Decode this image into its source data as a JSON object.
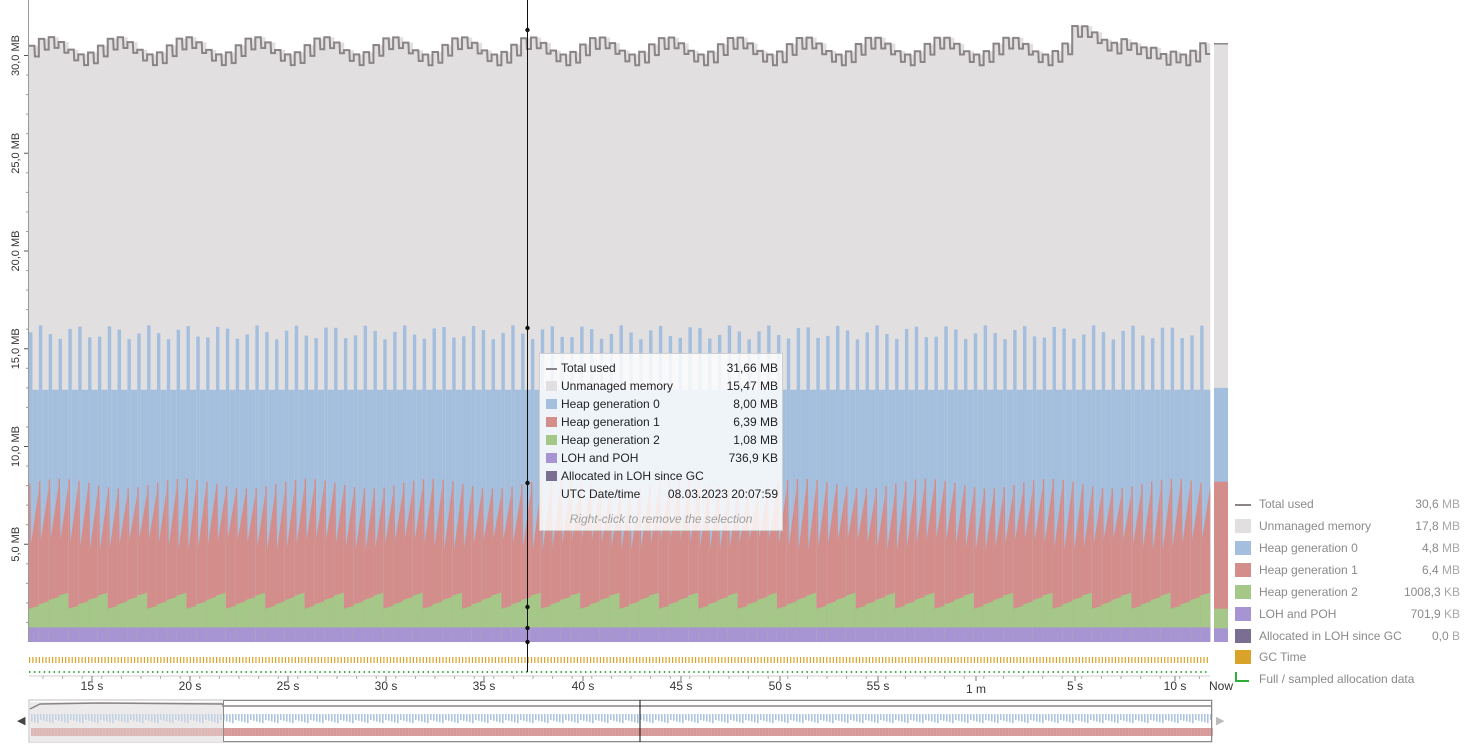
{
  "chart_data": {
    "type": "area",
    "title": "",
    "y_axis": {
      "ticks": [
        "5,0 MB",
        "10,0 MB",
        "15,0 MB",
        "20,0 MB",
        "25,0 MB",
        "30,0 MB"
      ],
      "ylim_mb": [
        0,
        33.5
      ]
    },
    "x_axis": {
      "ticks": [
        "15 s",
        "20 s",
        "25 s",
        "30 s",
        "35 s",
        "40 s",
        "45 s",
        "50 s",
        "55 s",
        "1 m",
        "5 s",
        "10 s",
        "Now"
      ]
    },
    "series": [
      {
        "name": "Total used",
        "color": "#8a8486",
        "kind": "line",
        "approx_mb": [
          30.3,
          31.3
        ]
      },
      {
        "name": "Unmanaged memory",
        "color": "#e2dfe0",
        "kind": "stack"
      },
      {
        "name": "Heap generation 0",
        "color": "#a4bfde",
        "kind": "stack",
        "peak_top_mb": 16.5
      },
      {
        "name": "Heap generation 1",
        "color": "#d38e8c",
        "kind": "stack",
        "top_mb": [
          8.3,
          5.0
        ]
      },
      {
        "name": "Heap generation 2",
        "color": "#a5c788",
        "kind": "stack",
        "top_mb": [
          2.6,
          1.7
        ]
      },
      {
        "name": "LOH and POH",
        "color": "#a795d3",
        "kind": "stack",
        "top_mb": 1.0
      },
      {
        "name": "Allocated in LOH since GC",
        "color": "#7a6f93",
        "kind": "stack"
      }
    ],
    "selection": {
      "marker_x_s": 37,
      "rows": [
        {
          "name": "Total used",
          "value": "31,66 MB"
        },
        {
          "name": "Unmanaged memory",
          "value": "15,47 MB"
        },
        {
          "name": "Heap generation 0",
          "value": "8,00 MB"
        },
        {
          "name": "Heap generation 1",
          "value": "6,39 MB"
        },
        {
          "name": "Heap generation 2",
          "value": "1,08 MB"
        },
        {
          "name": "LOH and POH",
          "value": "736,9 KB"
        },
        {
          "name": "Allocated in LOH since GC",
          "value": ""
        },
        {
          "name": "UTC Date/time",
          "value": "08.03.2023 20:07:59"
        }
      ],
      "hint": "Right-click to remove the selection"
    },
    "legend": [
      {
        "name": "Total used",
        "value": "30,6",
        "unit": "MB"
      },
      {
        "name": "Unmanaged memory",
        "value": "17,8",
        "unit": "MB"
      },
      {
        "name": "Heap generation 0",
        "value": "4,8",
        "unit": "MB"
      },
      {
        "name": "Heap generation 1",
        "value": "6,4",
        "unit": "MB"
      },
      {
        "name": "Heap generation 2",
        "value": "1008,3",
        "unit": "KB"
      },
      {
        "name": "LOH and POH",
        "value": "701,9",
        "unit": "KB"
      },
      {
        "name": "Allocated in LOH since GC",
        "value": "0,0",
        "unit": "B"
      },
      {
        "name": "GC Time",
        "value": "",
        "unit": ""
      },
      {
        "name": "Full /  sampled allocation data",
        "value": "",
        "unit": ""
      }
    ],
    "current_bar_mb": {
      "unmanaged_top": 30.6,
      "gen0_top": 13.0,
      "gen1_top": 8.2,
      "gen2_top": 1.7,
      "loh_top": 0.7
    }
  },
  "colors": {
    "total": "#8a8486",
    "unmanaged": "#e2dfe0",
    "gen0": "#a4bfde",
    "gen1": "#d38e8c",
    "gen2": "#a5c788",
    "loh": "#a795d3",
    "loh_gc": "#7a6f93",
    "gc_time": "#d9a32a",
    "full_sampled": "#2fae3a"
  },
  "nav": {
    "left_icon": "chevron-left-icon",
    "right_icon": "chevron-right-icon"
  }
}
